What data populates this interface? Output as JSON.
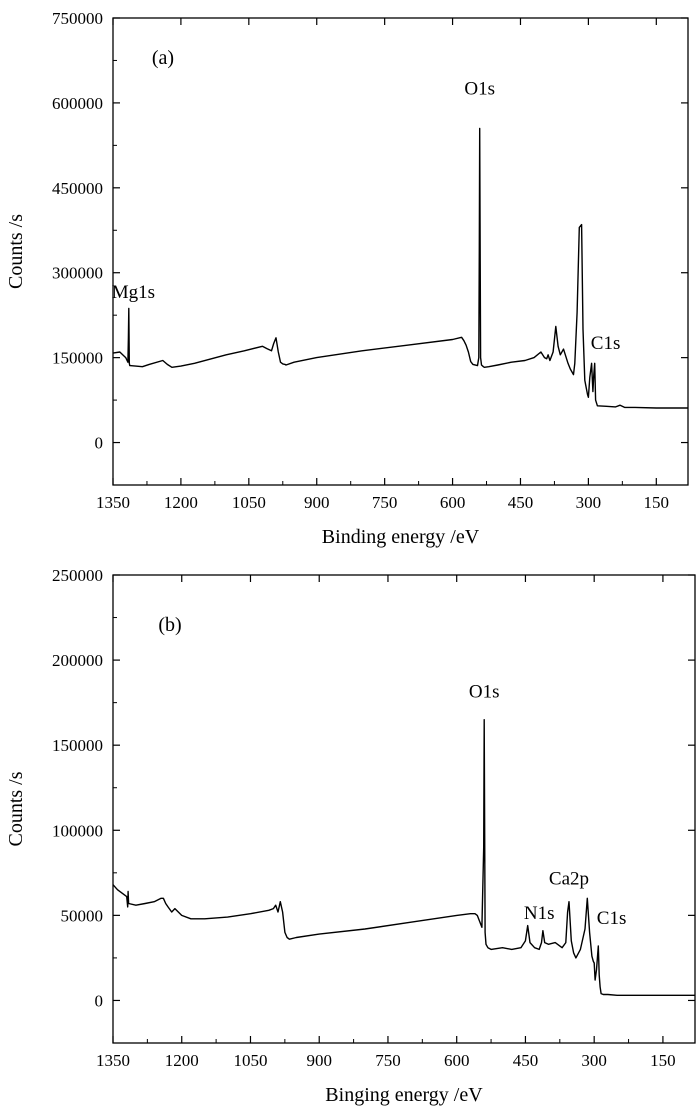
{
  "chart_data": [
    {
      "type": "line",
      "panel_label": "(a)",
      "xlabel": "Binding energy /eV",
      "ylabel": "Counts /s",
      "x_reversed": true,
      "xlim": [
        1350,
        80
      ],
      "ylim": [
        -75000,
        750000
      ],
      "xticks": [
        1350,
        1200,
        1050,
        900,
        750,
        600,
        450,
        300,
        150
      ],
      "yticks": [
        0,
        150000,
        300000,
        450000,
        600000,
        750000
      ],
      "grid": false,
      "series": [
        {
          "color": "#000000",
          "x": [
            1350,
            1335,
            1322,
            1317,
            1316,
            1315,
            1314,
            1313,
            1300,
            1285,
            1270,
            1240,
            1230,
            1220,
            1200,
            1170,
            1100,
            1060,
            1020,
            1010,
            1000,
            995,
            990,
            985,
            980,
            975,
            970,
            968,
            950,
            900,
            800,
            700,
            600,
            580,
            575,
            570,
            565,
            560,
            555,
            545,
            542,
            541,
            540,
            539,
            538,
            536,
            532,
            530,
            520,
            500,
            470,
            440,
            420,
            405,
            397,
            392,
            389,
            385,
            378,
            372,
            367,
            362,
            355,
            345,
            340,
            333,
            330,
            325,
            320,
            315,
            312,
            308,
            305,
            302,
            300,
            297,
            293,
            290,
            288,
            286,
            284,
            280,
            260,
            240,
            230,
            220,
            200,
            150,
            80
          ],
          "y": [
            158000,
            160000,
            150000,
            142000,
            185000,
            237000,
            140000,
            136000,
            135000,
            134000,
            138000,
            145000,
            138000,
            133000,
            135000,
            140000,
            155000,
            162000,
            170000,
            166000,
            162000,
            175000,
            185000,
            160000,
            142000,
            139000,
            138000,
            137000,
            142000,
            150000,
            162000,
            172000,
            182000,
            186000,
            180000,
            172000,
            160000,
            143000,
            138000,
            136000,
            150000,
            340000,
            555000,
            320000,
            150000,
            137000,
            134000,
            133000,
            134000,
            137000,
            142000,
            145000,
            150000,
            160000,
            150000,
            148000,
            155000,
            145000,
            160000,
            205000,
            170000,
            155000,
            165000,
            140000,
            130000,
            120000,
            140000,
            230000,
            380000,
            385000,
            200000,
            110000,
            98000,
            85000,
            80000,
            115000,
            140000,
            90000,
            120000,
            140000,
            75000,
            65000,
            64000,
            63000,
            66000,
            62000,
            62000,
            61000,
            61000
          ]
        }
      ],
      "annotations": [
        {
          "text": "Mg1s",
          "x": 1305,
          "y": 255000
        },
        {
          "text": "O1s",
          "x": 540,
          "y": 615000
        },
        {
          "text": "C1s",
          "x": 262,
          "y": 165000
        }
      ]
    },
    {
      "type": "line",
      "panel_label": "(b)",
      "xlabel": "Binging energy /eV",
      "ylabel": "Counts /s",
      "x_reversed": true,
      "xlim": [
        1350,
        80
      ],
      "ylim": [
        -25000,
        250000
      ],
      "xticks": [
        1350,
        1200,
        1050,
        900,
        750,
        600,
        450,
        300,
        150
      ],
      "yticks": [
        0,
        50000,
        100000,
        150000,
        200000,
        250000
      ],
      "grid": false,
      "series": [
        {
          "color": "#000000",
          "x": [
            1350,
            1340,
            1320,
            1318,
            1317,
            1316,
            1300,
            1280,
            1260,
            1245,
            1240,
            1235,
            1230,
            1222,
            1215,
            1200,
            1180,
            1150,
            1100,
            1050,
            1010,
            1000,
            995,
            990,
            985,
            980,
            975,
            970,
            965,
            950,
            900,
            800,
            700,
            600,
            570,
            560,
            555,
            545,
            541,
            540,
            539,
            538,
            536,
            532,
            525,
            500,
            480,
            460,
            450,
            445,
            440,
            430,
            420,
            415,
            412,
            408,
            400,
            385,
            370,
            362,
            358,
            355,
            350,
            345,
            340,
            330,
            320,
            315,
            310,
            305,
            302,
            300,
            298,
            295,
            293,
            291,
            289,
            287,
            285,
            280,
            270,
            250,
            200,
            150,
            80
          ],
          "y": [
            68000,
            65000,
            61000,
            55000,
            64000,
            57000,
            56000,
            57000,
            58000,
            60000,
            60000,
            57000,
            55000,
            52000,
            54000,
            50000,
            48000,
            48000,
            49000,
            51000,
            53000,
            54000,
            56000,
            52000,
            58000,
            52000,
            40000,
            37000,
            36000,
            37000,
            39000,
            42000,
            46000,
            50000,
            51000,
            51000,
            50000,
            43000,
            90000,
            165000,
            95000,
            40000,
            33000,
            31000,
            30000,
            31000,
            30000,
            31000,
            35000,
            44000,
            34000,
            31000,
            30000,
            34000,
            41000,
            34000,
            33000,
            34000,
            31000,
            34000,
            52000,
            58000,
            35000,
            28000,
            25000,
            30000,
            42000,
            60000,
            40000,
            26000,
            23000,
            22000,
            12000,
            18000,
            25000,
            32000,
            15000,
            8000,
            4000,
            3500,
            3500,
            3000,
            3000,
            3000,
            3000
          ]
        }
      ],
      "annotations": [
        {
          "text": "O1s",
          "x": 540,
          "y": 178000
        },
        {
          "text": "Ca2p",
          "x": 355,
          "y": 68000
        },
        {
          "text": "N1s",
          "x": 420,
          "y": 48000
        },
        {
          "text": "C1s",
          "x": 262,
          "y": 45000
        }
      ]
    }
  ]
}
